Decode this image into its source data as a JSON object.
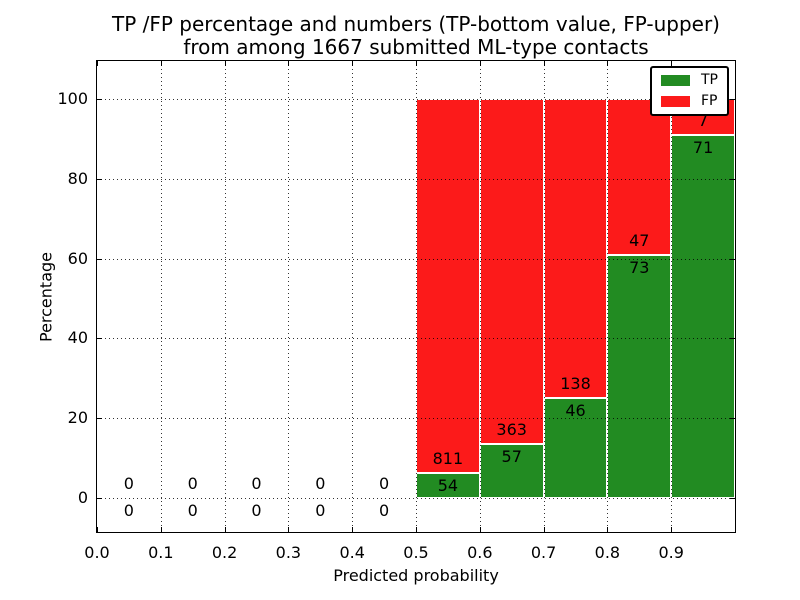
{
  "figure": {
    "title_line1": "TP /FP percentage and numbers (TP-bottom value, FP-upper)",
    "title_line2": "from among 1667 submitted ML-type contacts",
    "xlabel": "Predicted probability",
    "ylabel": "Percentage"
  },
  "chart_data": {
    "type": "bar",
    "stacked": true,
    "title": "TP /FP percentage and numbers (TP-bottom value, FP-upper) from among 1667 submitted ML-type contacts",
    "xlabel": "Predicted probability",
    "ylabel": "Percentage",
    "xlim": [
      0.0,
      1.0
    ],
    "ylim": [
      -8.5,
      109.5
    ],
    "x_ticks": [
      0.0,
      0.1,
      0.2,
      0.3,
      0.4,
      0.5,
      0.6,
      0.7,
      0.8,
      0.9
    ],
    "y_ticks": [
      0,
      20,
      40,
      60,
      80,
      100
    ],
    "grid": true,
    "grid_style": "dotted",
    "bin_width": 0.1,
    "bin_starts": [
      0.0,
      0.1,
      0.2,
      0.3,
      0.4,
      0.5,
      0.6,
      0.7,
      0.8,
      0.9
    ],
    "total_contacts": 1667,
    "series": [
      {
        "name": "TP",
        "color": "#228b22",
        "counts": [
          0,
          0,
          0,
          0,
          0,
          54,
          57,
          46,
          73,
          71
        ],
        "pct": [
          0,
          0,
          0,
          0,
          0,
          6.24,
          13.57,
          25.0,
          60.83,
          91.03
        ]
      },
      {
        "name": "FP",
        "color": "#fc1a1a",
        "counts": [
          0,
          0,
          0,
          0,
          0,
          811,
          363,
          138,
          47,
          7
        ],
        "pct": [
          0,
          0,
          0,
          0,
          0,
          93.76,
          86.43,
          75.0,
          39.17,
          8.97
        ]
      }
    ],
    "legend": {
      "position": "upper right",
      "entries": [
        "TP",
        "FP"
      ]
    }
  },
  "colors": {
    "tp": "#228b22",
    "fp": "#fc1a1a",
    "grid": "#000000",
    "text": "#000000",
    "bar_edge": "#ffffff",
    "background": "#ffffff"
  }
}
